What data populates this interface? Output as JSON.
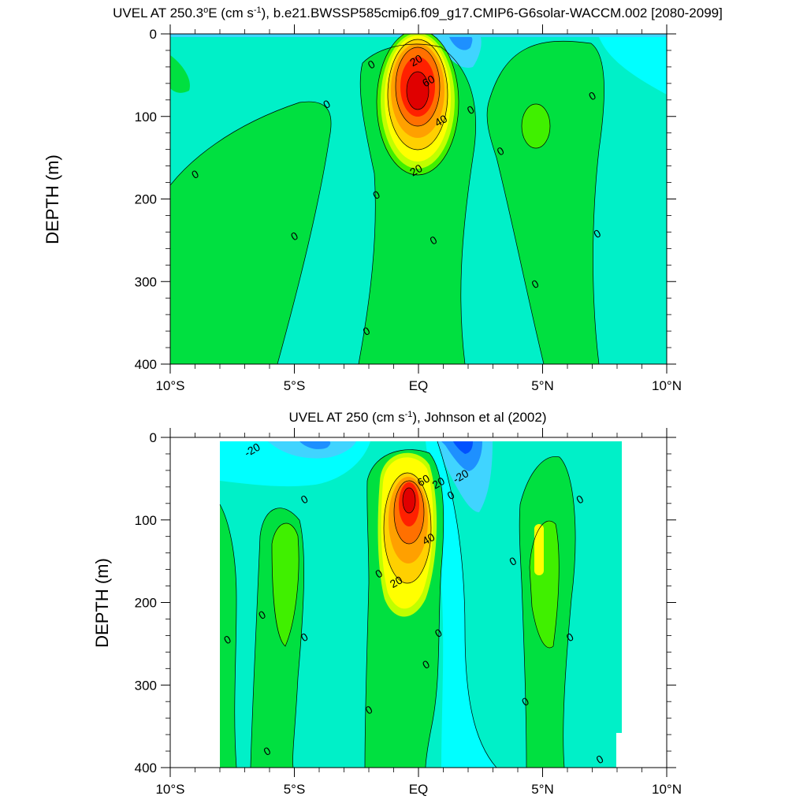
{
  "colors": {
    "neg_dark": "#0050ff",
    "neg_mid": "#1e90ff",
    "neg_light": "#40d4ff",
    "cyan": "#00ffff",
    "near_zero": "#00f0c8",
    "pos_light": "#00e040",
    "pos_green": "#40f000",
    "pos_yellow_green": "#c0ff00",
    "yellow": "#ffff00",
    "orange_light": "#ffd000",
    "orange": "#ffa000",
    "orange_dark": "#ff7000",
    "red": "#ff2000",
    "dark_red": "#e00000"
  },
  "chart_data": [
    {
      "type": "heatmap",
      "title_parts": [
        "UVEL AT 250.3",
        "o",
        "E (cm s",
        "-1",
        "), b.e21.BWSSP585cmip6.f09_g17.CMIP6-G6solar-WACCM.002 [2080-2099]"
      ],
      "xlabel": "",
      "ylabel": "DEPTH (m)",
      "x_ticks": [
        "10°S",
        "5°S",
        "EQ",
        "5°N",
        "10°N"
      ],
      "x_tick_values": [
        -10,
        -5,
        0,
        5,
        10
      ],
      "y_ticks": [
        "0",
        "100",
        "200",
        "300",
        "400"
      ],
      "y_tick_values": [
        0,
        100,
        200,
        300,
        400
      ],
      "xlim": [
        -10,
        10
      ],
      "ylim": [
        400,
        0
      ],
      "contour_interval": 5,
      "contour_labels": [
        {
          "text": "0",
          "lat": -9.0,
          "depth": 170
        },
        {
          "text": "0",
          "lat": -3.7,
          "depth": 85
        },
        {
          "text": "0",
          "lat": -5.0,
          "depth": 245
        },
        {
          "text": "0",
          "lat": -1.9,
          "depth": 37
        },
        {
          "text": "0",
          "lat": -1.7,
          "depth": 195
        },
        {
          "text": "0",
          "lat": -2.1,
          "depth": 360
        },
        {
          "text": "0",
          "lat": 0.6,
          "depth": 250
        },
        {
          "text": "0",
          "lat": 2.1,
          "depth": 92
        },
        {
          "text": "0",
          "lat": 3.3,
          "depth": 142
        },
        {
          "text": "0",
          "lat": 4.7,
          "depth": 303
        },
        {
          "text": "0",
          "lat": 7.0,
          "depth": 75
        },
        {
          "text": "0",
          "lat": 7.2,
          "depth": 242
        },
        {
          "text": "20",
          "lat": -0.1,
          "depth": 32
        },
        {
          "text": "60",
          "lat": 0.4,
          "depth": 57
        },
        {
          "text": "40",
          "lat": 0.9,
          "depth": 105
        },
        {
          "text": "20",
          "lat": -0.1,
          "depth": 165
        }
      ]
    },
    {
      "type": "heatmap",
      "title_parts": [
        "UVEL AT 250 (cm s",
        "-1",
        "), Johnson et al (2002)"
      ],
      "xlabel": "",
      "ylabel": "DEPTH (m)",
      "x_ticks": [
        "10°S",
        "5°S",
        "EQ",
        "5°N",
        "10°N"
      ],
      "x_tick_values": [
        -10,
        -5,
        0,
        5,
        10
      ],
      "y_ticks": [
        "0",
        "100",
        "200",
        "300",
        "400"
      ],
      "y_tick_values": [
        0,
        100,
        200,
        300,
        400
      ],
      "xlim": [
        -10,
        10
      ],
      "ylim": [
        400,
        0
      ],
      "contour_interval": 5,
      "contour_labels": [
        {
          "text": "-20",
          "lat": -6.7,
          "depth": 15
        },
        {
          "text": "-20",
          "lat": 1.7,
          "depth": 47
        },
        {
          "text": "60",
          "lat": 0.2,
          "depth": 52
        },
        {
          "text": "20",
          "lat": 0.8,
          "depth": 55
        },
        {
          "text": "0",
          "lat": 1.3,
          "depth": 70
        },
        {
          "text": "0",
          "lat": -4.6,
          "depth": 75
        },
        {
          "text": "0",
          "lat": 6.5,
          "depth": 75
        },
        {
          "text": "40",
          "lat": 0.4,
          "depth": 123
        },
        {
          "text": "0",
          "lat": 3.8,
          "depth": 150
        },
        {
          "text": "0",
          "lat": -1.6,
          "depth": 165
        },
        {
          "text": "20",
          "lat": -0.9,
          "depth": 175
        },
        {
          "text": "0",
          "lat": -6.3,
          "depth": 215
        },
        {
          "text": "0",
          "lat": 0.8,
          "depth": 237
        },
        {
          "text": "0",
          "lat": -4.6,
          "depth": 242
        },
        {
          "text": "0",
          "lat": 6.1,
          "depth": 242
        },
        {
          "text": "0",
          "lat": -7.7,
          "depth": 245
        },
        {
          "text": "0",
          "lat": 0.3,
          "depth": 275
        },
        {
          "text": "0",
          "lat": 4.3,
          "depth": 320
        },
        {
          "text": "0",
          "lat": -2.0,
          "depth": 330
        },
        {
          "text": "0",
          "lat": -6.1,
          "depth": 380
        },
        {
          "text": "0",
          "lat": 7.3,
          "depth": 390
        }
      ]
    }
  ]
}
